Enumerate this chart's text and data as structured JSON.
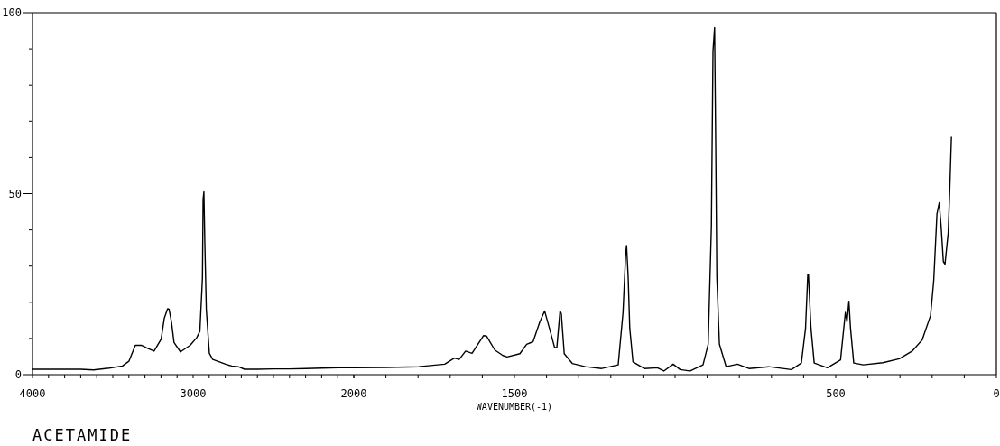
{
  "chart_data": [
    {
      "type": "line",
      "title": "ACETAMIDE",
      "color": "#000000",
      "x": [
        4000,
        3900,
        3800,
        3700,
        3620,
        3522,
        3440,
        3400,
        3360,
        3320,
        3280,
        3243,
        3199,
        3180,
        3159,
        3150,
        3135,
        3119,
        3079,
        3019,
        2978,
        2958,
        2942,
        2938,
        2933,
        2927,
        2918,
        2899,
        2878,
        2798,
        2760,
        2719,
        2680,
        2600,
        2500,
        2400,
        2300,
        2200,
        2096,
        2000
      ],
      "values": [
        1.5,
        1.5,
        1.5,
        1.5,
        1.3,
        1.8,
        2.4,
        3.7,
        8.1,
        8.1,
        7.2,
        6.5,
        9.8,
        15.5,
        18.2,
        18.1,
        14.6,
        8.9,
        6.3,
        8.1,
        10.2,
        12,
        26.7,
        48.4,
        50.5,
        36.2,
        18,
        5.9,
        4.2,
        2.9,
        2.4,
        2.2,
        1.5,
        1.5,
        1.6,
        1.6,
        1.7,
        1.8,
        1.9,
        1.9
      ],
      "xlim": [
        4000,
        2000
      ],
      "xticks": [
        4000,
        {
          "value": 3900,
          "label": null
        },
        {
          "value": 3800,
          "label": null
        },
        {
          "value": 3700,
          "label": null
        },
        {
          "value": 3600,
          "label": null
        },
        {
          "value": 3500,
          "label": null
        },
        {
          "value": 3400,
          "label": null
        },
        {
          "value": 3300,
          "label": null
        },
        {
          "value": 3200,
          "label": null
        },
        {
          "value": 3100,
          "label": null
        },
        3000,
        {
          "value": 2900,
          "label": null
        },
        {
          "value": 2800,
          "label": null
        },
        {
          "value": 2700,
          "label": null
        },
        {
          "value": 2600,
          "label": null
        },
        {
          "value": 2500,
          "label": null
        },
        {
          "value": 2400,
          "label": null
        },
        {
          "value": 2300,
          "label": null
        },
        {
          "value": 2200,
          "label": null
        },
        {
          "value": 2100,
          "label": null
        },
        2000
      ],
      "ylim": [
        0,
        100
      ],
      "yticks": [
        0,
        {
          "value": 10,
          "label": null
        },
        {
          "value": 20,
          "label": null
        },
        {
          "value": 30,
          "label": null
        },
        {
          "value": 40,
          "label": null
        },
        50,
        {
          "value": 60,
          "label": null
        },
        {
          "value": 70,
          "label": null
        },
        {
          "value": 80,
          "label": null
        },
        {
          "value": 90,
          "label": null
        },
        100
      ]
    },
    {
      "type": "line",
      "xlabel": "WAVENUMBER(-1)",
      "color": "#000000",
      "x": [
        2000,
        1900,
        1798,
        1717,
        1687,
        1672,
        1652,
        1632,
        1596,
        1587,
        1561,
        1536,
        1523,
        1483,
        1462,
        1442,
        1421,
        1406,
        1391,
        1375,
        1368,
        1358,
        1354,
        1345,
        1320,
        1279,
        1228,
        1177,
        1162,
        1154,
        1151,
        1146,
        1141,
        1131,
        1096,
        1055,
        1035,
        1006,
        984,
        953,
        913,
        897,
        887,
        882,
        877,
        874,
        870,
        862,
        841,
        806,
        770,
        709,
        638,
        607,
        594,
        587,
        585,
        577,
        567,
        526,
        485,
        470,
        465,
        459,
        454,
        444,
        414,
        353,
        302,
        261,
        231,
        205,
        195,
        185,
        178,
        172,
        165,
        160,
        150,
        145,
        140
      ],
      "values": [
        1.9,
        2.0,
        2.2,
        2.9,
        4.6,
        4.2,
        6.5,
        5.9,
        10.8,
        10.7,
        6.8,
        5.3,
        4.9,
        5.8,
        8.4,
        9.1,
        14.6,
        17.6,
        12.8,
        7.5,
        7.5,
        17.6,
        16.8,
        5.8,
        3.1,
        2.2,
        1.7,
        2.7,
        17.2,
        33,
        35.7,
        26.9,
        12.8,
        3.5,
        1.7,
        1.9,
        1.0,
        2.9,
        1.4,
        1.0,
        2.7,
        8.4,
        40.9,
        89.3,
        95.9,
        68.2,
        26.9,
        8.4,
        2.2,
        2.9,
        1.7,
        2.2,
        1.4,
        3.2,
        12.8,
        27.7,
        27.7,
        12.8,
        3.2,
        1.9,
        4.1,
        17.2,
        14.6,
        20.3,
        12.8,
        3.2,
        2.7,
        3.3,
        4.4,
        6.6,
        9.6,
        16.3,
        26,
        44.4,
        47.5,
        41,
        31.2,
        30.5,
        39.2,
        51.5,
        65.6
      ],
      "xlim": [
        2000,
        0
      ],
      "xticks": [
        {
          "value": 2000,
          "label": null
        },
        {
          "value": 1900,
          "label": null
        },
        {
          "value": 1800,
          "label": null
        },
        {
          "value": 1700,
          "label": null
        },
        {
          "value": 1600,
          "label": null
        },
        1500,
        {
          "value": 1400,
          "label": null
        },
        {
          "value": 1300,
          "label": null
        },
        {
          "value": 1200,
          "label": null
        },
        {
          "value": 1100,
          "label": null
        },
        {
          "value": 1000,
          "label": null
        },
        {
          "value": 900,
          "label": null
        },
        {
          "value": 800,
          "label": null
        },
        {
          "value": 700,
          "label": null
        },
        {
          "value": 600,
          "label": null
        },
        500,
        {
          "value": 400,
          "label": null
        },
        {
          "value": 300,
          "label": null
        },
        {
          "value": 200,
          "label": null
        },
        {
          "value": 100,
          "label": null
        },
        0
      ],
      "ylim": [
        0,
        100
      ],
      "tick_labels": "x"
    }
  ]
}
